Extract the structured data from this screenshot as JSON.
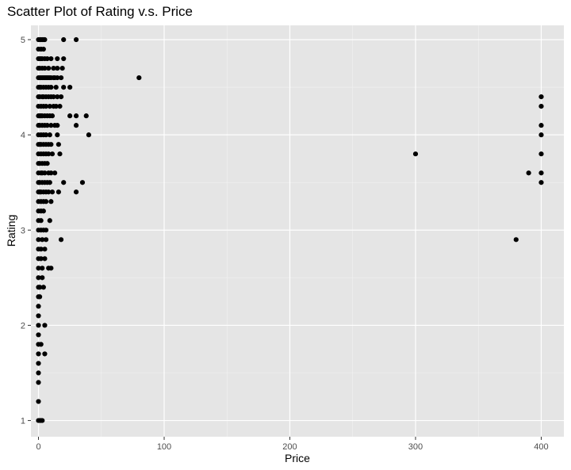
{
  "chart_data": {
    "type": "scatter",
    "title": "Scatter Plot of Rating v.s. Price",
    "xlabel": "Price",
    "ylabel": "Rating",
    "xlim": [
      -6,
      418
    ],
    "ylim": [
      0.83,
      5.15
    ],
    "x_ticks": [
      0,
      100,
      200,
      300,
      400
    ],
    "x_minor": [
      50,
      150,
      250,
      350
    ],
    "y_ticks": [
      1,
      2,
      3,
      4,
      5
    ],
    "y_minor": [
      1.5,
      2.5,
      3.5,
      4.5
    ],
    "grid": true,
    "colors": {
      "panel": "#e5e5e5",
      "grid_major": "#ffffff",
      "grid_minor": "#f2f2f2",
      "point": "#000000",
      "ticks": "#333333"
    },
    "points": [
      {
        "x": 0,
        "y": 5.0
      },
      {
        "x": 1,
        "y": 5.0
      },
      {
        "x": 2,
        "y": 5.0
      },
      {
        "x": 3,
        "y": 5.0
      },
      {
        "x": 4,
        "y": 5.0
      },
      {
        "x": 5,
        "y": 5.0
      },
      {
        "x": 20,
        "y": 5.0
      },
      {
        "x": 30,
        "y": 5.0
      },
      {
        "x": 0,
        "y": 4.9
      },
      {
        "x": 2,
        "y": 4.9
      },
      {
        "x": 4,
        "y": 4.9
      },
      {
        "x": 0,
        "y": 4.8
      },
      {
        "x": 1,
        "y": 4.8
      },
      {
        "x": 2,
        "y": 4.8
      },
      {
        "x": 3,
        "y": 4.8
      },
      {
        "x": 5,
        "y": 4.8
      },
      {
        "x": 7,
        "y": 4.8
      },
      {
        "x": 10,
        "y": 4.8
      },
      {
        "x": 15,
        "y": 4.8
      },
      {
        "x": 20,
        "y": 4.8
      },
      {
        "x": 0,
        "y": 4.7
      },
      {
        "x": 1,
        "y": 4.7
      },
      {
        "x": 3,
        "y": 4.7
      },
      {
        "x": 5,
        "y": 4.7
      },
      {
        "x": 8,
        "y": 4.7
      },
      {
        "x": 12,
        "y": 4.7
      },
      {
        "x": 15,
        "y": 4.7
      },
      {
        "x": 19,
        "y": 4.7
      },
      {
        "x": 0,
        "y": 4.6
      },
      {
        "x": 1,
        "y": 4.6
      },
      {
        "x": 2,
        "y": 4.6
      },
      {
        "x": 3,
        "y": 4.6
      },
      {
        "x": 4,
        "y": 4.6
      },
      {
        "x": 5,
        "y": 4.6
      },
      {
        "x": 6,
        "y": 4.6
      },
      {
        "x": 7,
        "y": 4.6
      },
      {
        "x": 8,
        "y": 4.6
      },
      {
        "x": 9,
        "y": 4.6
      },
      {
        "x": 10,
        "y": 4.6
      },
      {
        "x": 12,
        "y": 4.6
      },
      {
        "x": 13,
        "y": 4.6
      },
      {
        "x": 15,
        "y": 4.6
      },
      {
        "x": 18,
        "y": 4.6
      },
      {
        "x": 80,
        "y": 4.6
      },
      {
        "x": 0,
        "y": 4.5
      },
      {
        "x": 1,
        "y": 4.5
      },
      {
        "x": 2,
        "y": 4.5
      },
      {
        "x": 4,
        "y": 4.5
      },
      {
        "x": 6,
        "y": 4.5
      },
      {
        "x": 8,
        "y": 4.5
      },
      {
        "x": 10,
        "y": 4.5
      },
      {
        "x": 14,
        "y": 4.5
      },
      {
        "x": 20,
        "y": 4.5
      },
      {
        "x": 25,
        "y": 4.5
      },
      {
        "x": 0,
        "y": 4.4
      },
      {
        "x": 1,
        "y": 4.4
      },
      {
        "x": 3,
        "y": 4.4
      },
      {
        "x": 4,
        "y": 4.4
      },
      {
        "x": 6,
        "y": 4.4
      },
      {
        "x": 8,
        "y": 4.4
      },
      {
        "x": 10,
        "y": 4.4
      },
      {
        "x": 12,
        "y": 4.4
      },
      {
        "x": 15,
        "y": 4.4
      },
      {
        "x": 18,
        "y": 4.4
      },
      {
        "x": 400,
        "y": 4.4
      },
      {
        "x": 0,
        "y": 4.3
      },
      {
        "x": 2,
        "y": 4.3
      },
      {
        "x": 4,
        "y": 4.3
      },
      {
        "x": 6,
        "y": 4.3
      },
      {
        "x": 9,
        "y": 4.3
      },
      {
        "x": 12,
        "y": 4.3
      },
      {
        "x": 14,
        "y": 4.3
      },
      {
        "x": 17,
        "y": 4.3
      },
      {
        "x": 400,
        "y": 4.3
      },
      {
        "x": 0,
        "y": 4.2
      },
      {
        "x": 1,
        "y": 4.2
      },
      {
        "x": 2,
        "y": 4.2
      },
      {
        "x": 3,
        "y": 4.2
      },
      {
        "x": 5,
        "y": 4.2
      },
      {
        "x": 7,
        "y": 4.2
      },
      {
        "x": 9,
        "y": 4.2
      },
      {
        "x": 11,
        "y": 4.2
      },
      {
        "x": 25,
        "y": 4.2
      },
      {
        "x": 30,
        "y": 4.2
      },
      {
        "x": 38,
        "y": 4.2
      },
      {
        "x": 0,
        "y": 4.1
      },
      {
        "x": 1,
        "y": 4.1
      },
      {
        "x": 3,
        "y": 4.1
      },
      {
        "x": 5,
        "y": 4.1
      },
      {
        "x": 7,
        "y": 4.1
      },
      {
        "x": 10,
        "y": 4.1
      },
      {
        "x": 13,
        "y": 4.1
      },
      {
        "x": 15,
        "y": 4.1
      },
      {
        "x": 30,
        "y": 4.1
      },
      {
        "x": 400,
        "y": 4.1
      },
      {
        "x": 0,
        "y": 4.0
      },
      {
        "x": 2,
        "y": 4.0
      },
      {
        "x": 4,
        "y": 4.0
      },
      {
        "x": 6,
        "y": 4.0
      },
      {
        "x": 9,
        "y": 4.0
      },
      {
        "x": 15,
        "y": 4.0
      },
      {
        "x": 40,
        "y": 4.0
      },
      {
        "x": 400,
        "y": 4.0
      },
      {
        "x": 0,
        "y": 3.9
      },
      {
        "x": 1,
        "y": 3.9
      },
      {
        "x": 2,
        "y": 3.9
      },
      {
        "x": 4,
        "y": 3.9
      },
      {
        "x": 6,
        "y": 3.9
      },
      {
        "x": 8,
        "y": 3.9
      },
      {
        "x": 10,
        "y": 3.9
      },
      {
        "x": 16,
        "y": 3.9
      },
      {
        "x": 0,
        "y": 3.8
      },
      {
        "x": 2,
        "y": 3.8
      },
      {
        "x": 4,
        "y": 3.8
      },
      {
        "x": 6,
        "y": 3.8
      },
      {
        "x": 8,
        "y": 3.8
      },
      {
        "x": 11,
        "y": 3.8
      },
      {
        "x": 17,
        "y": 3.8
      },
      {
        "x": 300,
        "y": 3.8
      },
      {
        "x": 400,
        "y": 3.8
      },
      {
        "x": 0,
        "y": 3.7
      },
      {
        "x": 1,
        "y": 3.7
      },
      {
        "x": 3,
        "y": 3.7
      },
      {
        "x": 5,
        "y": 3.7
      },
      {
        "x": 7,
        "y": 3.7
      },
      {
        "x": 0,
        "y": 3.6
      },
      {
        "x": 2,
        "y": 3.6
      },
      {
        "x": 3,
        "y": 3.6
      },
      {
        "x": 5,
        "y": 3.6
      },
      {
        "x": 8,
        "y": 3.6
      },
      {
        "x": 10,
        "y": 3.6
      },
      {
        "x": 13,
        "y": 3.6
      },
      {
        "x": 390,
        "y": 3.6
      },
      {
        "x": 400,
        "y": 3.6
      },
      {
        "x": 0,
        "y": 3.5
      },
      {
        "x": 1,
        "y": 3.5
      },
      {
        "x": 3,
        "y": 3.5
      },
      {
        "x": 5,
        "y": 3.5
      },
      {
        "x": 7,
        "y": 3.5
      },
      {
        "x": 9,
        "y": 3.5
      },
      {
        "x": 20,
        "y": 3.5
      },
      {
        "x": 35,
        "y": 3.5
      },
      {
        "x": 400,
        "y": 3.5
      },
      {
        "x": 0,
        "y": 3.4
      },
      {
        "x": 1,
        "y": 3.4
      },
      {
        "x": 2,
        "y": 3.4
      },
      {
        "x": 4,
        "y": 3.4
      },
      {
        "x": 6,
        "y": 3.4
      },
      {
        "x": 8,
        "y": 3.4
      },
      {
        "x": 11,
        "y": 3.4
      },
      {
        "x": 16,
        "y": 3.4
      },
      {
        "x": 30,
        "y": 3.4
      },
      {
        "x": 0,
        "y": 3.3
      },
      {
        "x": 2,
        "y": 3.3
      },
      {
        "x": 4,
        "y": 3.3
      },
      {
        "x": 6,
        "y": 3.3
      },
      {
        "x": 10,
        "y": 3.3
      },
      {
        "x": 0,
        "y": 3.2
      },
      {
        "x": 2,
        "y": 3.2
      },
      {
        "x": 4,
        "y": 3.2
      },
      {
        "x": 0,
        "y": 3.1
      },
      {
        "x": 2,
        "y": 3.1
      },
      {
        "x": 9,
        "y": 3.1
      },
      {
        "x": 0,
        "y": 3.0
      },
      {
        "x": 2,
        "y": 3.0
      },
      {
        "x": 4,
        "y": 3.0
      },
      {
        "x": 6,
        "y": 3.0
      },
      {
        "x": 0,
        "y": 2.9
      },
      {
        "x": 3,
        "y": 2.9
      },
      {
        "x": 6,
        "y": 2.9
      },
      {
        "x": 18,
        "y": 2.9
      },
      {
        "x": 380,
        "y": 2.9
      },
      {
        "x": 0,
        "y": 2.8
      },
      {
        "x": 2,
        "y": 2.8
      },
      {
        "x": 5,
        "y": 2.8
      },
      {
        "x": 0,
        "y": 2.7
      },
      {
        "x": 2,
        "y": 2.7
      },
      {
        "x": 5,
        "y": 2.7
      },
      {
        "x": 0,
        "y": 2.6
      },
      {
        "x": 3,
        "y": 2.6
      },
      {
        "x": 8,
        "y": 2.6
      },
      {
        "x": 10,
        "y": 2.6
      },
      {
        "x": 0,
        "y": 2.5
      },
      {
        "x": 3,
        "y": 2.5
      },
      {
        "x": 0,
        "y": 2.4
      },
      {
        "x": 1,
        "y": 2.4
      },
      {
        "x": 4,
        "y": 2.4
      },
      {
        "x": 0,
        "y": 2.3
      },
      {
        "x": 1,
        "y": 2.3
      },
      {
        "x": 0,
        "y": 2.2
      },
      {
        "x": 0,
        "y": 2.1
      },
      {
        "x": 0,
        "y": 2.0
      },
      {
        "x": 5,
        "y": 2.0
      },
      {
        "x": 0,
        "y": 1.9
      },
      {
        "x": 0,
        "y": 1.8
      },
      {
        "x": 2,
        "y": 1.8
      },
      {
        "x": 0,
        "y": 1.7
      },
      {
        "x": 5,
        "y": 1.7
      },
      {
        "x": 0,
        "y": 1.6
      },
      {
        "x": 0,
        "y": 1.5
      },
      {
        "x": 0,
        "y": 1.4
      },
      {
        "x": 0,
        "y": 1.2
      },
      {
        "x": 0,
        "y": 1.0
      },
      {
        "x": 1,
        "y": 1.0
      },
      {
        "x": 2,
        "y": 1.0
      },
      {
        "x": 3,
        "y": 1.0
      }
    ]
  }
}
